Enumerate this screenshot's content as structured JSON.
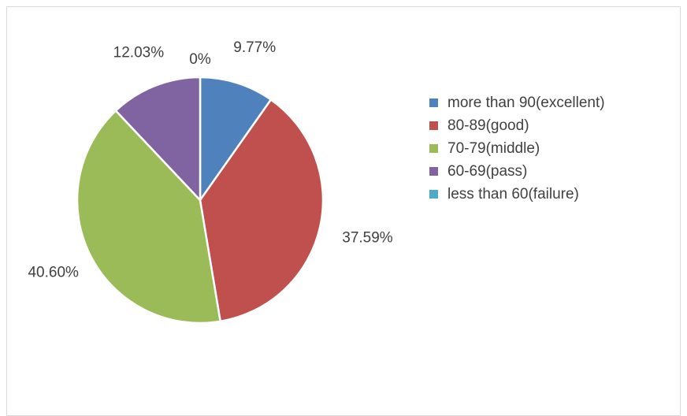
{
  "chart_data": {
    "type": "pie",
    "title": "",
    "slices": [
      {
        "name": "more than 90(excellent)",
        "value": 9.77,
        "label": "9.77%",
        "color": "#4f81bd"
      },
      {
        "name": "80-89(good)",
        "value": 37.59,
        "label": "37.59%",
        "color": "#c0504d"
      },
      {
        "name": "70-79(middle)",
        "value": 40.6,
        "label": "40.60%",
        "color": "#9bbb59"
      },
      {
        "name": "60-69(pass)",
        "value": 12.03,
        "label": "12.03%",
        "color": "#8064a2"
      },
      {
        "name": "less than 60(failure)",
        "value": 0,
        "label": "0%",
        "color": "#4bacc6"
      }
    ],
    "legend_position": "right"
  }
}
